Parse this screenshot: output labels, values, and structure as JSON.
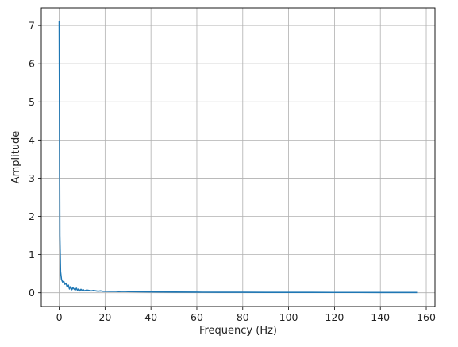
{
  "chart_data": {
    "type": "line",
    "title": "",
    "xlabel": "Frequency (Hz)",
    "ylabel": "Amplitude",
    "xlim": [
      -7.8,
      163.8
    ],
    "ylim": [
      -0.36,
      7.46
    ],
    "xticks": [
      0,
      20,
      40,
      60,
      80,
      100,
      120,
      140,
      160
    ],
    "yticks": [
      0,
      1,
      2,
      3,
      4,
      5,
      6,
      7
    ],
    "grid": true,
    "legend": "none",
    "series": [
      {
        "color": "#1f77b4",
        "x": [
          0,
          0.3,
          0.6,
          1.0,
          1.5,
          2.0,
          2.5,
          3.0,
          3.5,
          4.0,
          4.5,
          5.0,
          5.5,
          6.0,
          6.5,
          7.0,
          7.5,
          8.0,
          8.5,
          9.0,
          9.5,
          10.0,
          10.5,
          11.0,
          12.0,
          13.0,
          14.0,
          15.0,
          16.0,
          17.0,
          18.0,
          19.0,
          20.0,
          22.0,
          24.0,
          26.0,
          28.0,
          30.0,
          33.0,
          36.0,
          40.0,
          45.0,
          50.0,
          60.0,
          70.0,
          80.0,
          90.0,
          100.0,
          110.0,
          120.0,
          130.0,
          140.0,
          150.0,
          156.0
        ],
        "values": [
          7.12,
          1.5,
          0.55,
          0.35,
          0.28,
          0.3,
          0.22,
          0.25,
          0.15,
          0.2,
          0.1,
          0.16,
          0.08,
          0.13,
          0.1,
          0.07,
          0.12,
          0.06,
          0.1,
          0.05,
          0.09,
          0.06,
          0.08,
          0.05,
          0.07,
          0.06,
          0.05,
          0.06,
          0.05,
          0.04,
          0.05,
          0.04,
          0.04,
          0.035,
          0.04,
          0.03,
          0.035,
          0.03,
          0.028,
          0.025,
          0.022,
          0.02,
          0.018,
          0.015,
          0.013,
          0.012,
          0.011,
          0.01,
          0.01,
          0.009,
          0.009,
          0.008,
          0.008,
          0.008
        ]
      }
    ]
  }
}
